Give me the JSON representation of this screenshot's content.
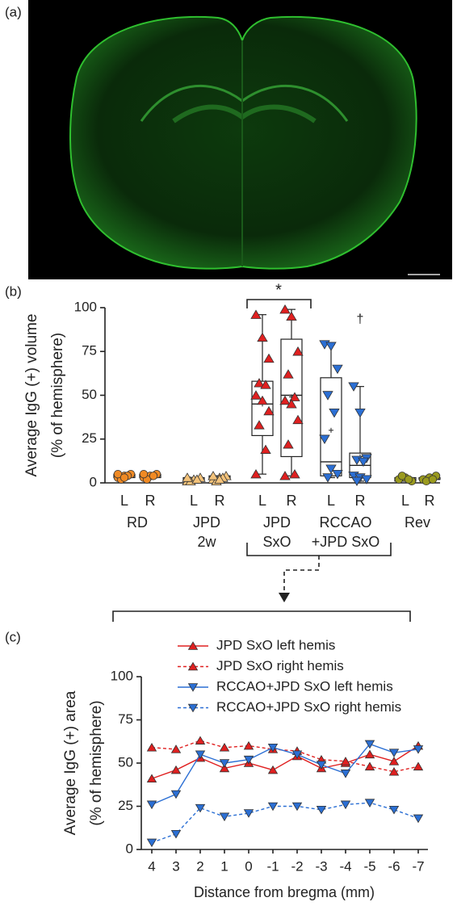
{
  "panel_labels": [
    "(a)",
    "(b)",
    "(c)"
  ],
  "chart_data": [
    {
      "type": "box",
      "ylabel": [
        "Average IgG (+) volume",
        "(% of hemisphere)"
      ],
      "ylim": [
        0,
        100
      ],
      "yticks": [
        0,
        25,
        50,
        75,
        100
      ],
      "annotations": [
        "*",
        "†"
      ],
      "groups": [
        {
          "label": [
            "RD"
          ],
          "color": "#f08a24",
          "marker": "circle",
          "boxes": [
            {
              "label": "L",
              "points": [
                3,
                4,
                5,
                2,
                4,
                5,
                3
              ],
              "min": 2,
              "q1": 3,
              "median": 4,
              "q3": 5,
              "max": 5,
              "mean": 4
            },
            {
              "label": "R",
              "points": [
                3,
                4,
                5,
                2,
                4,
                5
              ],
              "min": 2,
              "q1": 3,
              "median": 4,
              "q3": 5,
              "max": 5,
              "mean": 4
            }
          ]
        },
        {
          "label": [
            "JPD",
            "2w"
          ],
          "color": "#f3c27a",
          "marker": "triangle-up",
          "boxes": [
            {
              "label": "L",
              "points": [
                1,
                2,
                3,
                1,
                2,
                3
              ],
              "min": 1,
              "q1": 1,
              "median": 2,
              "q3": 3,
              "max": 3,
              "mean": 2
            },
            {
              "label": "R",
              "points": [
                2,
                3,
                4,
                1,
                3,
                4,
                2
              ],
              "min": 1,
              "q1": 2,
              "median": 3,
              "q3": 4,
              "max": 4,
              "mean": 3
            }
          ]
        },
        {
          "label": [
            "JPD",
            "SxO"
          ],
          "color": "#e02020",
          "marker": "triangle-up",
          "boxes": [
            {
              "label": "L",
              "points": [
                96,
                83,
                71,
                57,
                56,
                50,
                47,
                41,
                33,
                19,
                5
              ],
              "min": 5,
              "q1": 27,
              "median": 45,
              "q3": 58,
              "max": 96,
              "mean": 45
            },
            {
              "label": "R",
              "points": [
                99,
                95,
                75,
                62,
                49,
                47,
                45,
                36,
                22,
                5,
                4
              ],
              "min": 4,
              "q1": 15,
              "median": 50,
              "q3": 82,
              "max": 99,
              "mean": 49
            }
          ]
        },
        {
          "label": [
            "RCCAO",
            "+JPD SxO"
          ],
          "color": "#2b6fd4",
          "marker": "triangle-down",
          "boxes": [
            {
              "label": "L",
              "points": [
                79,
                78,
                65,
                50,
                40,
                25,
                8,
                5,
                3
              ],
              "min": 3,
              "q1": 4,
              "median": 12,
              "q3": 60,
              "max": 79,
              "mean": 30
            },
            {
              "label": "R",
              "points": [
                55,
                40,
                14,
                13,
                12,
                4,
                3,
                2,
                1
              ],
              "min": 1,
              "q1": 3,
              "median": 10,
              "q3": 17,
              "max": 55,
              "mean": 15
            }
          ]
        },
        {
          "label": [
            "Rev"
          ],
          "color": "#9a9a1e",
          "marker": "circle",
          "boxes": [
            {
              "label": "L",
              "points": [
                2,
                3,
                1,
                4,
                2
              ],
              "min": 1,
              "q1": 1,
              "median": 2,
              "q3": 3,
              "max": 4,
              "mean": 2
            },
            {
              "label": "R",
              "points": [
                2,
                3,
                4,
                1,
                2
              ],
              "min": 1,
              "q1": 2,
              "median": 2,
              "q3": 3,
              "max": 4,
              "mean": 2
            }
          ]
        }
      ]
    },
    {
      "type": "line",
      "ylabel": [
        "Average IgG (+) area",
        "(% of hemisphere)"
      ],
      "xlabel": "Distance from bregma (mm)",
      "categories": [
        "4",
        "3",
        "2",
        "1",
        "0",
        "-1",
        "-2",
        "-3",
        "-4",
        "-5",
        "-6",
        "-7"
      ],
      "ylim": [
        0,
        100
      ],
      "yticks": [
        0,
        25,
        50,
        75,
        100
      ],
      "series": [
        {
          "name": "JPD SxO left hemis",
          "color": "#e02020",
          "marker": "triangle-up",
          "dashed": false,
          "values": [
            41,
            46,
            53,
            47,
            50,
            46,
            54,
            47,
            50,
            55,
            51,
            60
          ]
        },
        {
          "name": "JPD SxO right hemis",
          "color": "#e02020",
          "marker": "triangle-up",
          "dashed": true,
          "values": [
            59,
            58,
            63,
            59,
            60,
            58,
            57,
            52,
            51,
            48,
            45,
            48
          ]
        },
        {
          "name": "RCCAO+JPD SxO left hemis",
          "color": "#2b6fd4",
          "marker": "triangle-down",
          "dashed": false,
          "values": [
            26,
            32,
            55,
            50,
            52,
            59,
            55,
            49,
            44,
            61,
            56,
            58
          ]
        },
        {
          "name": "RCCAO+JPD SxO right hemis",
          "color": "#2b6fd4",
          "marker": "triangle-down",
          "dashed": true,
          "values": [
            4,
            9,
            24,
            19,
            21,
            25,
            25,
            23,
            26,
            27,
            23,
            18
          ]
        }
      ]
    }
  ]
}
